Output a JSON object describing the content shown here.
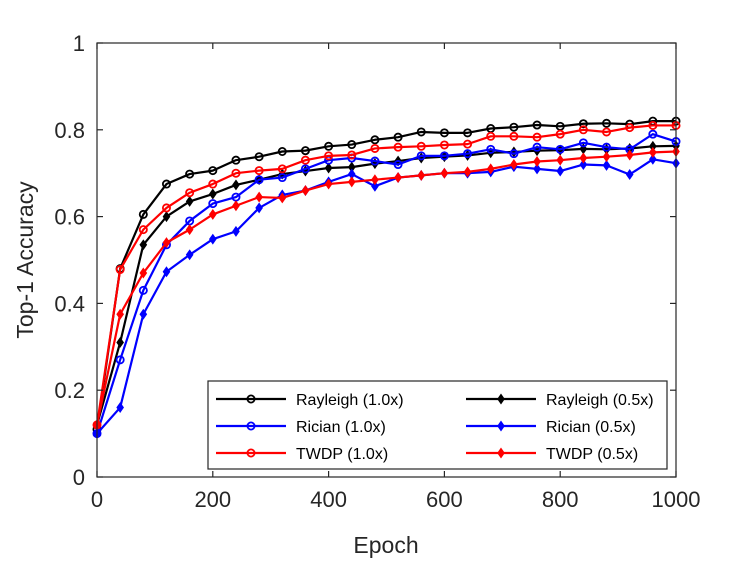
{
  "chart_data": {
    "type": "line",
    "title": "",
    "xlabel": "Epoch",
    "ylabel": "Top-1 Accuracy",
    "xlim": [
      0,
      1000
    ],
    "ylim": [
      0,
      1
    ],
    "xticks": [
      "0",
      "200",
      "400",
      "600",
      "800",
      "1000"
    ],
    "yticks": [
      "0",
      "0.2",
      "0.4",
      "0.6",
      "0.8",
      "1"
    ],
    "grid": false,
    "legend_position": "bottom-right",
    "x": [
      0,
      40,
      80,
      120,
      160,
      200,
      240,
      280,
      320,
      360,
      400,
      440,
      480,
      520,
      560,
      600,
      640,
      680,
      720,
      760,
      800,
      840,
      880,
      920,
      960,
      1000
    ],
    "series": [
      {
        "name": "Rayleigh (1.0x)",
        "color": "#000000",
        "marker": "circle",
        "values": [
          0.11,
          0.48,
          0.605,
          0.675,
          0.698,
          0.706,
          0.73,
          0.738,
          0.75,
          0.752,
          0.762,
          0.766,
          0.777,
          0.783,
          0.795,
          0.793,
          0.793,
          0.803,
          0.806,
          0.811,
          0.808,
          0.814,
          0.815,
          0.813,
          0.82,
          0.82
        ]
      },
      {
        "name": "Rayleigh (0.5x)",
        "color": "#000000",
        "marker": "diamond",
        "values": [
          0.12,
          0.31,
          0.535,
          0.6,
          0.635,
          0.652,
          0.673,
          0.685,
          0.698,
          0.705,
          0.712,
          0.714,
          0.722,
          0.728,
          0.735,
          0.738,
          0.741,
          0.747,
          0.749,
          0.752,
          0.753,
          0.756,
          0.755,
          0.757,
          0.762,
          0.763
        ]
      },
      {
        "name": "Rician (1.0x)",
        "color": "#0000ff",
        "marker": "circle",
        "values": [
          0.1,
          0.27,
          0.43,
          0.535,
          0.59,
          0.63,
          0.645,
          0.685,
          0.69,
          0.71,
          0.73,
          0.735,
          0.728,
          0.72,
          0.74,
          0.74,
          0.745,
          0.755,
          0.745,
          0.76,
          0.755,
          0.77,
          0.76,
          0.755,
          0.79,
          0.773
        ]
      },
      {
        "name": "Rician (0.5x)",
        "color": "#0000ff",
        "marker": "diamond",
        "values": [
          0.1,
          0.16,
          0.375,
          0.473,
          0.512,
          0.548,
          0.566,
          0.62,
          0.65,
          0.66,
          0.68,
          0.698,
          0.67,
          0.69,
          0.695,
          0.7,
          0.7,
          0.703,
          0.715,
          0.71,
          0.705,
          0.72,
          0.718,
          0.697,
          0.732,
          0.723
        ]
      },
      {
        "name": "TWDP (1.0x)",
        "color": "#ff0000",
        "marker": "circle",
        "values": [
          0.12,
          0.478,
          0.57,
          0.62,
          0.655,
          0.675,
          0.7,
          0.706,
          0.71,
          0.73,
          0.74,
          0.742,
          0.757,
          0.76,
          0.762,
          0.765,
          0.767,
          0.785,
          0.785,
          0.783,
          0.79,
          0.8,
          0.795,
          0.805,
          0.81,
          0.81
        ]
      },
      {
        "name": "TWDP (0.5x)",
        "color": "#ff0000",
        "marker": "diamond",
        "values": [
          0.12,
          0.375,
          0.47,
          0.54,
          0.57,
          0.605,
          0.625,
          0.645,
          0.643,
          0.66,
          0.675,
          0.68,
          0.685,
          0.69,
          0.695,
          0.7,
          0.703,
          0.71,
          0.72,
          0.727,
          0.73,
          0.735,
          0.738,
          0.742,
          0.748,
          0.75
        ]
      }
    ]
  }
}
